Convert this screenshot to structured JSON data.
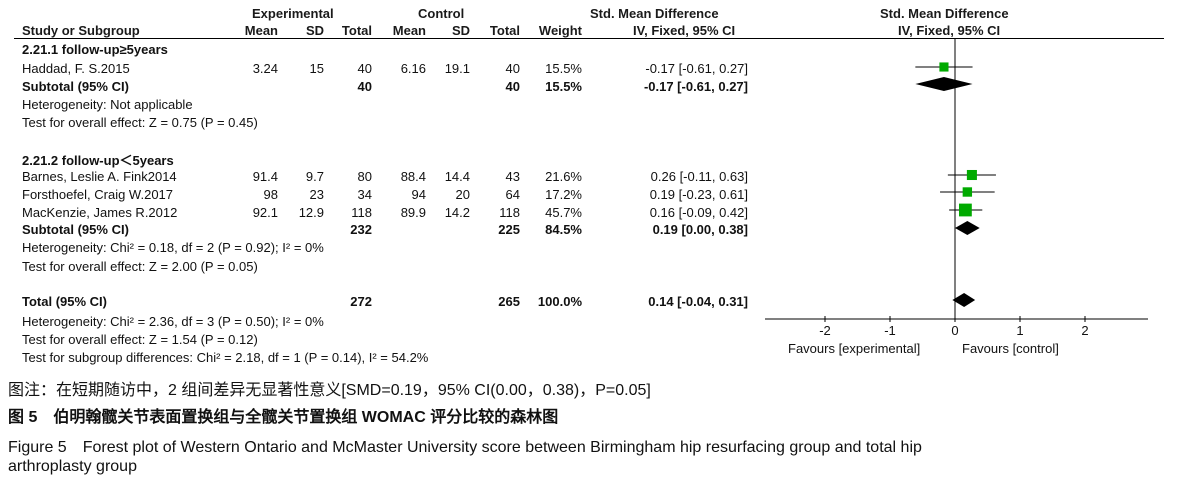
{
  "header": {
    "group_exp": "Experimental",
    "group_ctrl": "Control",
    "smd_left": "Std. Mean Difference",
    "smd_left_sub": "IV, Fixed, 95% CI",
    "smd_right": "Std. Mean Difference",
    "smd_right_sub": "IV, Fixed, 95% CI",
    "study_col": "Study or Subgroup",
    "mean": "Mean",
    "sd": "SD",
    "total": "Total",
    "weight": "Weight"
  },
  "subgroup1": {
    "title": "2.21.1 follow-up≥5years",
    "subtotal_label": "Subtotal (95% CI)",
    "subtotal_exp_total": "40",
    "subtotal_ctrl_total": "40",
    "subtotal_weight": "15.5%",
    "subtotal_ci": "-0.17 [-0.61, 0.27]",
    "heterogeneity": "Heterogeneity: Not applicable",
    "overall": "Test for overall effect: Z = 0.75 (P = 0.45)"
  },
  "subgroup2": {
    "title": "2.21.2 follow-up＜5years",
    "subtotal_label": "Subtotal (95% CI)",
    "subtotal_exp_total": "232",
    "subtotal_ctrl_total": "225",
    "subtotal_weight": "84.5%",
    "subtotal_ci": "0.19 [0.00, 0.38]",
    "heterogeneity": "Heterogeneity: Chi² = 0.18, df = 2 (P = 0.92); I² = 0%",
    "overall": "Test for overall effect: Z = 2.00 (P = 0.05)"
  },
  "studies": [
    {
      "name": "Haddad, F. S.2015",
      "e_mean": "3.24",
      "e_sd": "15",
      "e_total": "40",
      "c_mean": "6.16",
      "c_sd": "19.1",
      "c_total": "40",
      "weight": "15.5%",
      "ci": "-0.17 [-0.61, 0.27]"
    },
    {
      "name": "Barnes, Leslie A. Fink2014",
      "e_mean": "91.4",
      "e_sd": "9.7",
      "e_total": "80",
      "c_mean": "88.4",
      "c_sd": "14.4",
      "c_total": "43",
      "weight": "21.6%",
      "ci": "0.26 [-0.11, 0.63]"
    },
    {
      "name": "Forsthoefel, Craig W.2017",
      "e_mean": "98",
      "e_sd": "23",
      "e_total": "34",
      "c_mean": "94",
      "c_sd": "20",
      "c_total": "64",
      "weight": "17.2%",
      "ci": "0.19 [-0.23, 0.61]"
    },
    {
      "name": "MacKenzie, James R.2012",
      "e_mean": "92.1",
      "e_sd": "12.9",
      "e_total": "118",
      "c_mean": "89.9",
      "c_sd": "14.2",
      "c_total": "118",
      "weight": "45.7%",
      "ci": "0.16 [-0.09, 0.42]"
    }
  ],
  "total": {
    "label": "Total (95% CI)",
    "exp_total": "272",
    "ctrl_total": "265",
    "weight": "100.0%",
    "ci": "0.14 [-0.04, 0.31]",
    "heterogeneity": "Heterogeneity: Chi² = 2.36, df = 3 (P = 0.50); I² = 0%",
    "overall": "Test for overall effect: Z = 1.54 (P = 0.12)",
    "subgroup_diff": "Test for subgroup differences: Chi² = 2.18, df = 1 (P = 0.14), I² = 54.2%"
  },
  "axis": {
    "favours_left": "Favours [experimental]",
    "favours_right": "Favours [control]"
  },
  "captions": {
    "note": "图注：在短期随访中，2 组间差异无显著性意义[SMD=0.19，95% CI(0.00，0.38)，P=0.05]",
    "fig_cn": "图 5　伯明翰髋关节表面置换组与全髋关节置换组 WOMAC 评分比较的森林图",
    "fig_en_line1": "Figure 5　Forest plot of Western Ontario and McMaster University score between Birmingham hip resurfacing group and total hip",
    "fig_en_line2": "arthroplasty group"
  },
  "chart_data": {
    "type": "forest",
    "xlim": [
      -3,
      3
    ],
    "ticks": [
      -2,
      -1,
      0,
      1,
      2
    ],
    "reference_line": 0,
    "studies": [
      {
        "name": "Haddad, F. S.2015",
        "est": -0.17,
        "lo": -0.61,
        "hi": 0.27,
        "weight": 15.5
      },
      {
        "name": "Barnes, Leslie A. Fink2014",
        "est": 0.26,
        "lo": -0.11,
        "hi": 0.63,
        "weight": 21.6
      },
      {
        "name": "Forsthoefel, Craig W.2017",
        "est": 0.19,
        "lo": -0.23,
        "hi": 0.61,
        "weight": 17.2
      },
      {
        "name": "MacKenzie, James R.2012",
        "est": 0.16,
        "lo": -0.09,
        "hi": 0.42,
        "weight": 45.7
      }
    ],
    "diamonds": [
      {
        "name": "Subtotal 2.21.1",
        "est": -0.17,
        "lo": -0.61,
        "hi": 0.27
      },
      {
        "name": "Subtotal 2.21.2",
        "est": 0.19,
        "lo": 0.0,
        "hi": 0.38
      },
      {
        "name": "Total",
        "est": 0.14,
        "lo": -0.04,
        "hi": 0.31
      }
    ],
    "square_color": "#00aa00",
    "diamond_color": "#000000"
  }
}
